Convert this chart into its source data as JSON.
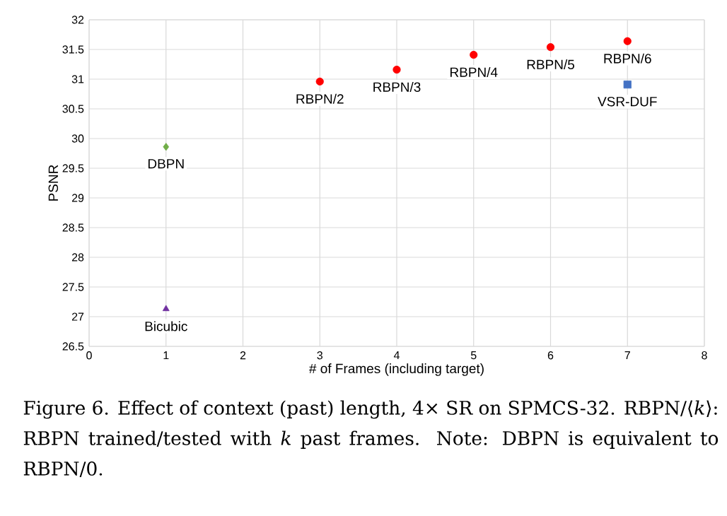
{
  "chart_data": {
    "type": "scatter",
    "xlabel": "# of Frames (including target)",
    "ylabel": "PSNR",
    "xlim": [
      0,
      8
    ],
    "xticks": [
      0,
      1,
      2,
      3,
      4,
      5,
      6,
      7,
      8
    ],
    "ylim": [
      26.5,
      32
    ],
    "yticks": [
      {
        "value": 26.5,
        "label": "26.5"
      },
      27,
      {
        "value": 27.5,
        "label": "27.5"
      },
      28,
      {
        "value": 28.5,
        "label": "28.5"
      },
      29,
      {
        "value": 29.5,
        "label": "29.5"
      },
      30,
      {
        "value": 30.5,
        "label": "30.5"
      },
      31,
      {
        "value": 31.5,
        "label": "31.5"
      },
      32
    ],
    "grid": true,
    "series": [
      {
        "color": "#ff0000",
        "marker": "circle",
        "x": [
          3,
          4,
          5,
          6,
          7
        ],
        "values": [
          30.96,
          31.16,
          31.41,
          31.54,
          31.64
        ]
      },
      {
        "color": "#70ad47",
        "marker": "diamond",
        "x": [
          1
        ],
        "values": [
          29.86
        ]
      },
      {
        "color": "#7030a0",
        "marker": "triangle",
        "x": [
          1
        ],
        "values": [
          27.13
        ]
      },
      {
        "color": "#4472c4",
        "marker": "square",
        "x": [
          7
        ],
        "values": [
          30.91
        ]
      }
    ],
    "annotations": [
      {
        "text": "RBPN/2",
        "x": 3,
        "y": 30.96
      },
      {
        "text": "RBPN/3",
        "x": 4,
        "y": 31.16
      },
      {
        "text": "RBPN/4",
        "x": 5,
        "y": 31.41
      },
      {
        "text": "RBPN/5",
        "x": 6,
        "y": 31.54
      },
      {
        "text": "RBPN/6",
        "x": 7,
        "y": 31.64
      },
      {
        "text": "VSR-DUF",
        "x": 7,
        "y": 30.91
      },
      {
        "text": "DBPN",
        "x": 1,
        "y": 29.86
      },
      {
        "text": "Bicubic",
        "x": 1,
        "y": 27.13
      },
      "Figure 6. Effect of context (past) length, 4× SR on SPMCS-32. RBPN/⟨*k*⟩: RBPN trained/tested with *k* past frames. Note: DBPN is equivalent to RBPN/0."
    ]
  }
}
